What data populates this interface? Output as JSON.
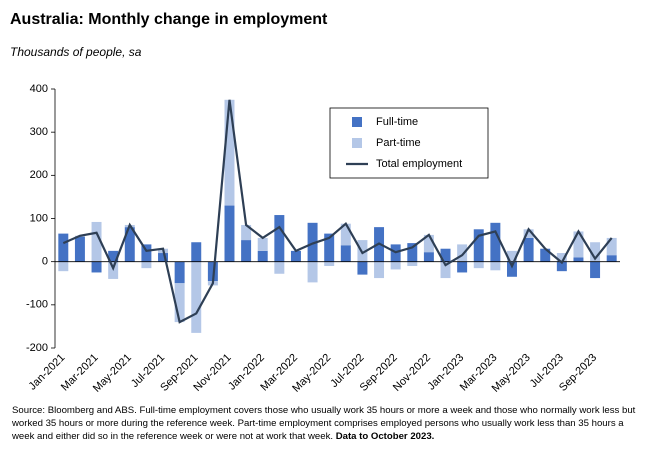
{
  "chart_data": {
    "type": "bar",
    "stacked": true,
    "title": "Australia: Monthly change in employment",
    "subtitle": "Thousands of people, sa",
    "categories": [
      "Jan-2021",
      null,
      "Mar-2021",
      null,
      "May-2021",
      null,
      "Jul-2021",
      null,
      "Sep-2021",
      null,
      "Nov-2021",
      null,
      "Jan-2022",
      null,
      "Mar-2022",
      null,
      "May-2022",
      null,
      "Jul-2022",
      null,
      "Sep-2022",
      null,
      "Nov-2022",
      null,
      "Jan-2023",
      null,
      "Mar-2023",
      null,
      "May-2023",
      null,
      "Jul-2023",
      null,
      "Sep-2023",
      null
    ],
    "series": [
      {
        "name": "Full-time",
        "type": "bar",
        "color": "#4472c4",
        "values": [
          65,
          58,
          -25,
          25,
          80,
          40,
          20,
          -50,
          45,
          -45,
          130,
          50,
          25,
          108,
          25,
          90,
          65,
          38,
          -30,
          80,
          40,
          43,
          22,
          30,
          -25,
          75,
          90,
          -35,
          55,
          30,
          -22,
          10,
          -38,
          15
        ]
      },
      {
        "name": "Part-time",
        "type": "bar",
        "color": "#b4c7e7",
        "values": [
          -22,
          2,
          92,
          -40,
          5,
          -15,
          10,
          -90,
          -165,
          -10,
          245,
          35,
          30,
          -28,
          0,
          -48,
          -10,
          50,
          50,
          -38,
          -18,
          -10,
          40,
          -38,
          40,
          -15,
          -20,
          25,
          20,
          0,
          20,
          60,
          45,
          40
        ]
      },
      {
        "name": "Total employment",
        "type": "line",
        "color": "#2e3f55",
        "values": [
          43,
          60,
          67,
          -15,
          85,
          25,
          30,
          -140,
          -120,
          -50,
          375,
          85,
          55,
          80,
          25,
          42,
          55,
          88,
          20,
          42,
          22,
          33,
          62,
          -8,
          15,
          60,
          70,
          -10,
          75,
          30,
          -2,
          70,
          7,
          55
        ]
      }
    ],
    "ylim": [
      -200,
      400
    ],
    "yticks": [
      -200,
      -100,
      0,
      100,
      200,
      300,
      400
    ],
    "grid": false,
    "legend": "upper right",
    "source": "Source: Bloomberg and ABS.  Full-time employment covers those who usually work 35 hours or more a week and those who normally work less but worked 35 hours or  more during the reference week.  Part-time employment comprises employed persons who usually work less than 35 hours a week and either did so in the reference week or were not at work that week.",
    "source_note": "Data to October 2023."
  }
}
